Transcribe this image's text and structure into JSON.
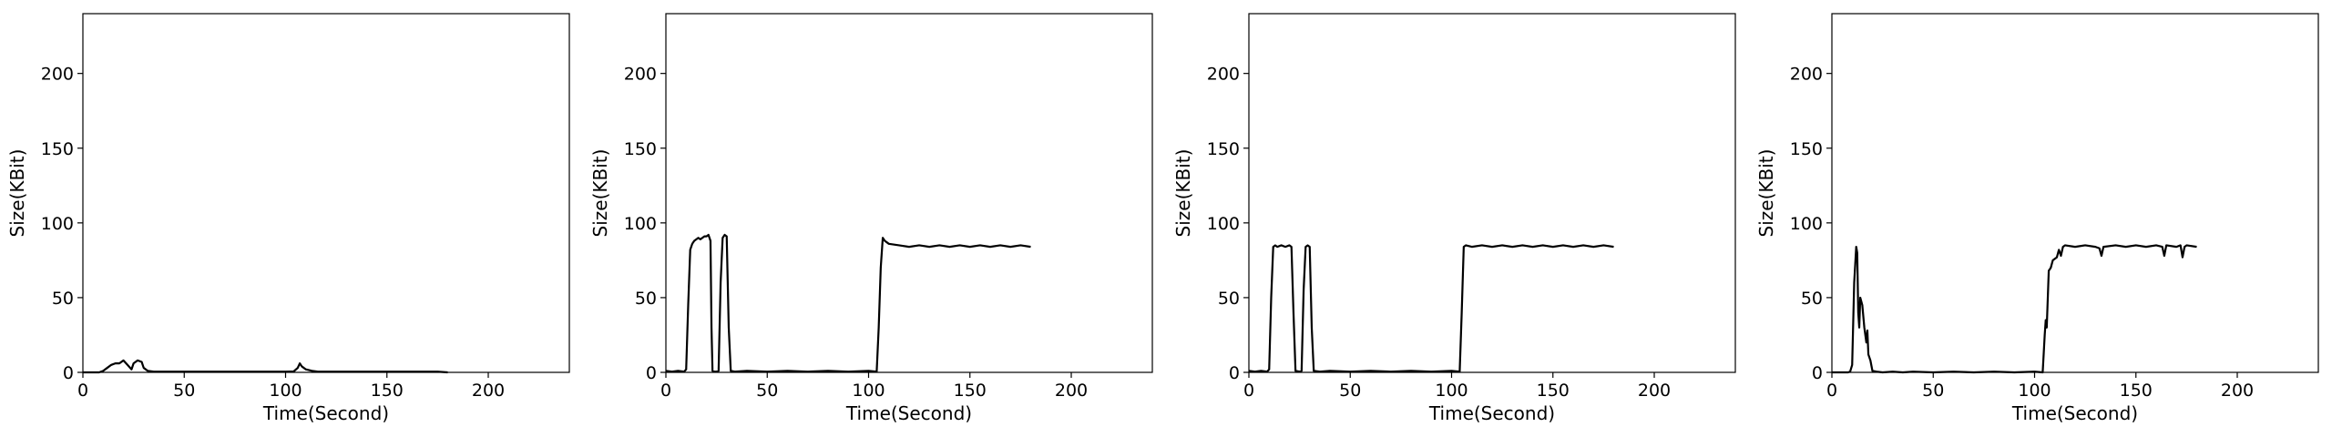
{
  "chart_data": [
    {
      "type": "line",
      "xlabel": "Time(Second)",
      "ylabel": "Size(KBit)",
      "xlim": [
        0,
        240
      ],
      "ylim": [
        0,
        240
      ],
      "xticks": [
        "0",
        "50",
        "100",
        "150",
        "200"
      ],
      "yticks": [
        "0",
        "50",
        "100",
        "150",
        "200"
      ],
      "grid": false,
      "series": [
        {
          "color": "#000000",
          "points": [
            [
              0,
              0
            ],
            [
              5,
              0
            ],
            [
              8,
              0
            ],
            [
              10,
              1
            ],
            [
              12,
              3
            ],
            [
              14,
              5
            ],
            [
              16,
              6
            ],
            [
              18,
              6
            ],
            [
              20,
              8
            ],
            [
              22,
              5
            ],
            [
              24,
              2
            ],
            [
              25,
              6
            ],
            [
              27,
              8
            ],
            [
              29,
              7
            ],
            [
              30,
              3
            ],
            [
              32,
              1
            ],
            [
              35,
              0.5
            ],
            [
              40,
              0.5
            ],
            [
              50,
              0.5
            ],
            [
              60,
              0.5
            ],
            [
              70,
              0.5
            ],
            [
              80,
              0.5
            ],
            [
              90,
              0.5
            ],
            [
              100,
              0.5
            ],
            [
              104,
              0.6
            ],
            [
              106,
              3
            ],
            [
              107,
              6
            ],
            [
              108,
              4
            ],
            [
              110,
              2
            ],
            [
              113,
              1
            ],
            [
              116,
              0.5
            ],
            [
              120,
              0.5
            ],
            [
              130,
              0.5
            ],
            [
              140,
              0.5
            ],
            [
              150,
              0.5
            ],
            [
              160,
              0.5
            ],
            [
              170,
              0.5
            ],
            [
              175,
              0.5
            ],
            [
              180,
              0
            ]
          ]
        }
      ]
    },
    {
      "type": "line",
      "xlabel": "Time(Second)",
      "ylabel": "Size(KBit)",
      "xlim": [
        0,
        240
      ],
      "ylim": [
        0,
        240
      ],
      "xticks": [
        "0",
        "50",
        "100",
        "150",
        "200"
      ],
      "yticks": [
        "0",
        "50",
        "100",
        "150",
        "200"
      ],
      "grid": false,
      "series": [
        {
          "color": "#000000",
          "points": [
            [
              0,
              1
            ],
            [
              3,
              0.5
            ],
            [
              6,
              1
            ],
            [
              9,
              0.5
            ],
            [
              10,
              2
            ],
            [
              11,
              45
            ],
            [
              12,
              82
            ],
            [
              13,
              86
            ],
            [
              14,
              88
            ],
            [
              15,
              89
            ],
            [
              16,
              90
            ],
            [
              17,
              89
            ],
            [
              18,
              90
            ],
            [
              19,
              91
            ],
            [
              20,
              91
            ],
            [
              21,
              92
            ],
            [
              22,
              88
            ],
            [
              22.5,
              30
            ],
            [
              23,
              1
            ],
            [
              24,
              0.5
            ],
            [
              25,
              0.5
            ],
            [
              26,
              1
            ],
            [
              27,
              60
            ],
            [
              28,
              90
            ],
            [
              29,
              92
            ],
            [
              30,
              91
            ],
            [
              31,
              30
            ],
            [
              32,
              1
            ],
            [
              34,
              0.5
            ],
            [
              40,
              1
            ],
            [
              50,
              0.5
            ],
            [
              60,
              1
            ],
            [
              70,
              0.5
            ],
            [
              80,
              1
            ],
            [
              90,
              0.5
            ],
            [
              100,
              1
            ],
            [
              104,
              0.5
            ],
            [
              105,
              30
            ],
            [
              106,
              70
            ],
            [
              107,
              90
            ],
            [
              108,
              88
            ],
            [
              109,
              87
            ],
            [
              110,
              86
            ],
            [
              115,
              85
            ],
            [
              120,
              84
            ],
            [
              125,
              85
            ],
            [
              130,
              84
            ],
            [
              135,
              85
            ],
            [
              140,
              84
            ],
            [
              145,
              85
            ],
            [
              150,
              84
            ],
            [
              155,
              85
            ],
            [
              160,
              84
            ],
            [
              165,
              85
            ],
            [
              170,
              84
            ],
            [
              175,
              85
            ],
            [
              180,
              84
            ]
          ]
        }
      ]
    },
    {
      "type": "line",
      "xlabel": "Time(Second)",
      "ylabel": "Size(KBit)",
      "xlim": [
        0,
        240
      ],
      "ylim": [
        0,
        240
      ],
      "xticks": [
        "0",
        "50",
        "100",
        "150",
        "200"
      ],
      "yticks": [
        "0",
        "50",
        "100",
        "150",
        "200"
      ],
      "grid": false,
      "series": [
        {
          "color": "#000000",
          "points": [
            [
              0,
              1
            ],
            [
              3,
              0.5
            ],
            [
              6,
              1
            ],
            [
              9,
              0.5
            ],
            [
              10,
              2
            ],
            [
              11,
              50
            ],
            [
              12,
              84
            ],
            [
              13,
              85
            ],
            [
              14,
              84
            ],
            [
              16,
              85
            ],
            [
              18,
              84
            ],
            [
              20,
              85
            ],
            [
              21,
              84
            ],
            [
              22,
              40
            ],
            [
              23,
              1
            ],
            [
              25,
              0.5
            ],
            [
              26,
              1
            ],
            [
              27,
              55
            ],
            [
              28,
              84
            ],
            [
              29,
              85
            ],
            [
              30,
              84
            ],
            [
              31,
              30
            ],
            [
              32,
              1
            ],
            [
              35,
              0.5
            ],
            [
              40,
              1
            ],
            [
              50,
              0.5
            ],
            [
              60,
              1
            ],
            [
              70,
              0.5
            ],
            [
              80,
              1
            ],
            [
              90,
              0.5
            ],
            [
              100,
              1
            ],
            [
              104,
              0.5
            ],
            [
              105,
              40
            ],
            [
              106,
              84
            ],
            [
              107,
              85
            ],
            [
              110,
              84
            ],
            [
              115,
              85
            ],
            [
              120,
              84
            ],
            [
              125,
              85
            ],
            [
              130,
              84
            ],
            [
              135,
              85
            ],
            [
              140,
              84
            ],
            [
              145,
              85
            ],
            [
              150,
              84
            ],
            [
              155,
              85
            ],
            [
              160,
              84
            ],
            [
              165,
              85
            ],
            [
              170,
              84
            ],
            [
              175,
              85
            ],
            [
              180,
              84
            ]
          ]
        }
      ]
    },
    {
      "type": "line",
      "xlabel": "Time(Second)",
      "ylabel": "Size(KBit)",
      "xlim": [
        0,
        240
      ],
      "ylim": [
        0,
        240
      ],
      "xticks": [
        "0",
        "50",
        "100",
        "150",
        "200"
      ],
      "yticks": [
        "0",
        "50",
        "100",
        "150",
        "200"
      ],
      "grid": false,
      "series": [
        {
          "color": "#000000",
          "points": [
            [
              0,
              0
            ],
            [
              5,
              0
            ],
            [
              8,
              0
            ],
            [
              9,
              0.5
            ],
            [
              10,
              5
            ],
            [
              11,
              60
            ],
            [
              12,
              84
            ],
            [
              12.5,
              80
            ],
            [
              13,
              40
            ],
            [
              13.5,
              30
            ],
            [
              14,
              50
            ],
            [
              15,
              45
            ],
            [
              16,
              30
            ],
            [
              17,
              20
            ],
            [
              17.5,
              28
            ],
            [
              18,
              12
            ],
            [
              19,
              8
            ],
            [
              20,
              1
            ],
            [
              22,
              0.5
            ],
            [
              25,
              0
            ],
            [
              30,
              0.5
            ],
            [
              35,
              0
            ],
            [
              40,
              0.5
            ],
            [
              50,
              0
            ],
            [
              60,
              0.5
            ],
            [
              70,
              0
            ],
            [
              80,
              0.5
            ],
            [
              90,
              0
            ],
            [
              100,
              0.5
            ],
            [
              104,
              0
            ],
            [
              105,
              25
            ],
            [
              105.5,
              35
            ],
            [
              106,
              30
            ],
            [
              107,
              68
            ],
            [
              108,
              70
            ],
            [
              109,
              75
            ],
            [
              110,
              76
            ],
            [
              111,
              77
            ],
            [
              112,
              82
            ],
            [
              113,
              78
            ],
            [
              114,
              84
            ],
            [
              115,
              85
            ],
            [
              120,
              84
            ],
            [
              125,
              85
            ],
            [
              130,
              84
            ],
            [
              132,
              83
            ],
            [
              133,
              78
            ],
            [
              134,
              84
            ],
            [
              140,
              85
            ],
            [
              145,
              84
            ],
            [
              150,
              85
            ],
            [
              155,
              84
            ],
            [
              160,
              85
            ],
            [
              163,
              84
            ],
            [
              164,
              78
            ],
            [
              165,
              85
            ],
            [
              170,
              84
            ],
            [
              172,
              85
            ],
            [
              173,
              77
            ],
            [
              174,
              84
            ],
            [
              175,
              85
            ],
            [
              180,
              84
            ]
          ]
        }
      ]
    }
  ]
}
